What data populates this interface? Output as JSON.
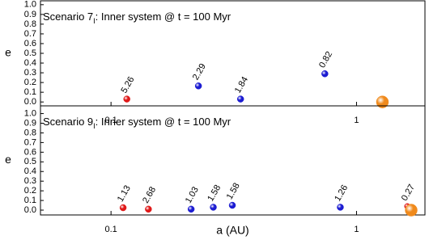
{
  "chart_data": [
    {
      "type": "scatter",
      "title": "Scenario 7",
      "title_sub": "I",
      "title_rest": ": Inner system @ t = 100 Myr",
      "y_label": "e",
      "log_x": true,
      "x": [
        0.116,
        0.227,
        0.337,
        0.743,
        1.275
      ],
      "values": [
        0.03,
        0.165,
        0.03,
        0.29,
        0.0
      ],
      "labels": [
        "5.26",
        "2.29",
        "1.84",
        "0.82",
        null
      ],
      "colors": [
        "#e01818",
        "#1c1cd2",
        "#1c1cd2",
        "#1c1cd2",
        "#f08a1c"
      ],
      "marker_sizes": [
        4,
        4,
        4,
        4,
        7.5
      ],
      "xlim": [
        0.0516,
        1.9
      ],
      "xticks": [
        0.1,
        1
      ],
      "ylim": [
        -0.04,
        1.04
      ],
      "yticks": [
        {
          "value": 0,
          "label": "0.0"
        },
        0.1,
        0.2,
        0.3,
        0.4,
        0.5,
        0.6,
        0.7,
        0.8,
        0.9,
        {
          "value": 1,
          "label": "1.0"
        }
      ]
    },
    {
      "type": "scatter",
      "title": "Scenario 9",
      "title_sub": "I",
      "title_rest": ": Inner system @ t = 100 Myr",
      "y_label": "e",
      "x_label": "a (AU)",
      "log_x": true,
      "x": [
        0.112,
        0.142,
        0.212,
        0.261,
        0.312,
        0.859,
        1.61,
        1.67
      ],
      "values": [
        0.025,
        0.01,
        0.01,
        0.03,
        0.05,
        0.03,
        0.04,
        0.0
      ],
      "labels": [
        "1.13",
        "2.68",
        "1.03",
        "1.58",
        "1.58",
        "1.26",
        "0.27",
        null
      ],
      "colors": [
        "#e01818",
        "#e01818",
        "#1c1cd2",
        "#1c1cd2",
        "#1c1cd2",
        "#1c1cd2",
        "#e01818",
        "#f08a1c"
      ],
      "marker_sizes": [
        4,
        4,
        4,
        4,
        4,
        4,
        3.5,
        7.5
      ],
      "xlim": [
        0.0516,
        1.9
      ],
      "xticks": [
        0.1,
        1
      ],
      "ylim": [
        -0.05,
        1.08
      ],
      "yticks": [
        {
          "value": 0,
          "label": "0.0"
        },
        0.1,
        0.2,
        0.3,
        0.4,
        0.5,
        0.6,
        0.7,
        0.8,
        0.9,
        {
          "value": 1,
          "label": "1.0"
        }
      ]
    }
  ]
}
